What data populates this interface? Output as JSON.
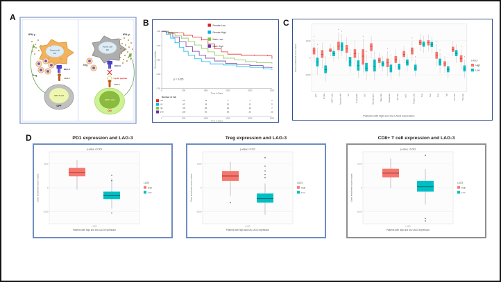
{
  "panel_labels": {
    "a": "A",
    "b": "B",
    "c": "C",
    "d": "D"
  },
  "palette": {
    "box_high": "#f8766d",
    "box_low": "#00bfc4",
    "km_female_low": "#e02020",
    "km_female_high": "#00b0f0",
    "km_male_low": "#7cc244",
    "km_male_high": "#7030a0",
    "panel_border_blue": "#31508e",
    "d_card_border_blue": "#6e8cc0",
    "d_card_border_gray": "#8f8f8f",
    "frame_border": "#151515"
  },
  "figure": {
    "panel_a": {
      "left": {
        "ifn": "IFN-γ",
        "tumor": "Tumor cell",
        "dc": "DC",
        "mhc": "MHC-II",
        "lag3": "LAG-3",
        "treg": "Treg",
        "t_cell": "CD4 T cell",
        "state": "OFF"
      },
      "right": {
        "ifn": "IFN-γ",
        "tumor": "Tumor cell",
        "dc": "DC",
        "mhc": "MHC-II",
        "cyclic_peptide": "Cyclic peptide",
        "lag3": "LAG-3",
        "treg": "Treg",
        "t_cell": "CD4 T cell",
        "state": "ON"
      }
    }
  },
  "chart_data": [
    {
      "panel": "B",
      "type": "line",
      "subtype": "kaplan_meier",
      "title": "",
      "p_value": "p = 0.025",
      "xlabel": "Time in Days",
      "ylabel": "Survival probability",
      "xlim": [
        0,
        2500
      ],
      "ylim": [
        0,
        1
      ],
      "xticks": [
        0,
        500,
        1000,
        1500,
        2000,
        2500
      ],
      "yticks": [
        1.0,
        0.75,
        0.5,
        0.25,
        0.0
      ],
      "legend_position": "top-right",
      "series": [
        {
          "name": "Female Low",
          "color": "#e02020",
          "points": [
            [
              0,
              1.0
            ],
            [
              150,
              0.98
            ],
            [
              350,
              0.97
            ],
            [
              500,
              0.93
            ],
            [
              700,
              0.9
            ],
            [
              900,
              0.85
            ],
            [
              1050,
              0.78
            ],
            [
              1200,
              0.7
            ],
            [
              1350,
              0.64
            ],
            [
              1500,
              0.6
            ],
            [
              1800,
              0.58
            ],
            [
              2100,
              0.58
            ],
            [
              2400,
              0.57
            ],
            [
              2500,
              0.52
            ]
          ]
        },
        {
          "name": "Female High",
          "color": "#00b0f0",
          "points": [
            [
              0,
              1.0
            ],
            [
              100,
              0.95
            ],
            [
              200,
              0.88
            ],
            [
              300,
              0.8
            ],
            [
              400,
              0.72
            ],
            [
              500,
              0.65
            ],
            [
              600,
              0.58
            ],
            [
              750,
              0.52
            ],
            [
              900,
              0.47
            ],
            [
              1100,
              0.43
            ],
            [
              1400,
              0.41
            ],
            [
              1700,
              0.38
            ],
            [
              2000,
              0.37
            ],
            [
              2300,
              0.34
            ],
            [
              2500,
              0.32
            ]
          ]
        },
        {
          "name": "Male Low",
          "color": "#7cc244",
          "points": [
            [
              0,
              1.0
            ],
            [
              150,
              0.96
            ],
            [
              300,
              0.92
            ],
            [
              450,
              0.88
            ],
            [
              600,
              0.82
            ],
            [
              750,
              0.76
            ],
            [
              900,
              0.7
            ],
            [
              1050,
              0.64
            ],
            [
              1200,
              0.58
            ],
            [
              1400,
              0.53
            ],
            [
              1650,
              0.5
            ],
            [
              1900,
              0.47
            ],
            [
              2150,
              0.45
            ],
            [
              2500,
              0.43
            ]
          ]
        },
        {
          "name": "Male High",
          "color": "#7030a0",
          "points": [
            [
              0,
              1.0
            ],
            [
              100,
              0.97
            ],
            [
              250,
              0.9
            ],
            [
              400,
              0.82
            ],
            [
              550,
              0.73
            ],
            [
              700,
              0.65
            ],
            [
              850,
              0.58
            ],
            [
              1000,
              0.53
            ],
            [
              1200,
              0.48
            ],
            [
              1450,
              0.44
            ],
            [
              1700,
              0.42
            ],
            [
              2000,
              0.4
            ],
            [
              2300,
              0.37
            ],
            [
              2500,
              0.36
            ]
          ]
        }
      ],
      "number_at_risk": {
        "title": "Number at risk",
        "time_points": [
          0,
          500,
          1000,
          1500,
          2000,
          2500
        ],
        "rows": [
          {
            "name": "Female Low",
            "color": "#e02020",
            "values": [
              29,
              21,
              12,
              4,
              1,
              1
            ]
          },
          {
            "name": "Female High",
            "color": "#00b0f0",
            "values": [
              61,
              42,
              26,
              15,
              11,
              5
            ]
          },
          {
            "name": "Male Low",
            "color": "#7cc244",
            "values": [
              91,
              58,
              35,
              16,
              10,
              7
            ]
          },
          {
            "name": "Male High",
            "color": "#7030a0",
            "values": [
              140,
              100,
              60,
              38,
              26,
              20
            ]
          }
        ]
      }
    },
    {
      "panel": "C",
      "type": "box",
      "grouping": "paired",
      "xlabel": "Patients with high and low LAG3 expression",
      "ylabel": "Gene enrichment score values",
      "ylim": [
        -2000,
        2000
      ],
      "yticks": [
        1000,
        0,
        -1000
      ],
      "legend": {
        "title": "LAG3",
        "items": [
          {
            "label": "High",
            "color": "#f8766d"
          },
          {
            "label": "Low",
            "color": "#00bfc4"
          }
        ]
      },
      "categories": [
        "aDC",
        "B cells",
        "CD8 T cells",
        "Cytotoxic cells",
        "DC",
        "Eosinophils",
        "iDC",
        "Macrophages",
        "Mast cells",
        "Neutrophils",
        "NK cells",
        "pDC",
        "T helper cells",
        "Tcm",
        "Tem",
        "TFH",
        "Tgd",
        "Th1 cells",
        "Th2 cells"
      ],
      "series": [
        {
          "name": "High",
          "color": "#f8766d",
          "boxes": [
            [
              200,
              400,
              600,
              -300,
              1100
            ],
            [
              0,
              200,
              450,
              -600,
              900
            ],
            [
              350,
              450,
              550,
              100,
              800
            ],
            [
              450,
              700,
              950,
              -100,
              1500
            ],
            [
              300,
              550,
              750,
              -200,
              1200
            ],
            [
              0,
              250,
              500,
              -500,
              1000
            ],
            [
              -400,
              100,
              500,
              -900,
              1100
            ],
            [
              400,
              650,
              850,
              0,
              1300
            ],
            [
              -300,
              -150,
              0,
              -600,
              300
            ],
            [
              -550,
              -300,
              -50,
              -1100,
              400
            ],
            [
              -300,
              -100,
              100,
              -700,
              500
            ],
            [
              50,
              200,
              400,
              -300,
              700
            ],
            [
              200,
              400,
              600,
              -200,
              1000
            ],
            [
              750,
              900,
              1050,
              400,
              1400
            ],
            [
              730,
              880,
              1030,
              380,
              1380
            ],
            [
              -50,
              150,
              350,
              -500,
              800
            ],
            [
              -500,
              -350,
              -200,
              -900,
              100
            ],
            [
              350,
              500,
              650,
              100,
              1000
            ],
            [
              -250,
              -50,
              150,
              -700,
              500
            ]
          ]
        },
        {
          "name": "Low",
          "color": "#00bfc4",
          "boxes": [
            [
              -500,
              -250,
              0,
              -1000,
              600
            ],
            [
              -900,
              -700,
              -450,
              -1400,
              100
            ],
            [
              100,
              250,
              400,
              -200,
              700
            ],
            [
              400,
              680,
              900,
              100,
              1400
            ],
            [
              -500,
              -250,
              50,
              -900,
              500
            ],
            [
              -750,
              -450,
              -150,
              -1200,
              300
            ],
            [
              -800,
              -600,
              -300,
              -1300,
              200
            ],
            [
              -800,
              -500,
              -100,
              -1300,
              400
            ],
            [
              -500,
              -350,
              -200,
              -800,
              100
            ],
            [
              -850,
              -650,
              -400,
              -1300,
              0
            ],
            [
              -700,
              -550,
              -350,
              -1100,
              -100
            ],
            [
              -450,
              -300,
              -100,
              -800,
              200
            ],
            [
              -750,
              -600,
              -400,
              -1100,
              -100
            ],
            [
              650,
              800,
              950,
              300,
              1300
            ],
            [
              630,
              780,
              930,
              280,
              1280
            ],
            [
              -450,
              -250,
              -50,
              -900,
              300
            ],
            [
              -850,
              -700,
              -500,
              -1200,
              -200
            ],
            [
              100,
              250,
              450,
              -300,
              800
            ],
            [
              -800,
              -650,
              -450,
              -1200,
              -100
            ]
          ]
        }
      ]
    },
    {
      "panel": "D1",
      "type": "box",
      "title": "PD1 expression and LAG-3",
      "p_value": "p-value <0.001",
      "xlabel": "Patients with high and low LAG3 expression",
      "ylabel": "Gene enrichment score values",
      "x_tick": "LAG3",
      "ylim": [
        -1500,
        1500
      ],
      "yticks": [
        1000,
        0,
        -1000
      ],
      "legend": {
        "title": "LAG3",
        "items": [
          {
            "label": "High",
            "color": "#f8766d"
          },
          {
            "label": "Low",
            "color": "#00bfc4"
          }
        ]
      },
      "series": [
        {
          "name": "High",
          "color": "#f8766d",
          "box": [
            480,
            640,
            830,
            -80,
            1150
          ],
          "outliers": []
        },
        {
          "name": "Low",
          "color": "#00bfc4",
          "box": [
            -470,
            -330,
            -160,
            -860,
            380
          ],
          "outliers": [
            520,
            300,
            -1050
          ]
        }
      ]
    },
    {
      "panel": "D2",
      "type": "box",
      "title": "Treg expression and LAG-3",
      "p_value": "p-value <0.001",
      "xlabel": "Patients with high and low LAG3 expression",
      "ylabel": "Gene enrichment score values",
      "x_tick": "LAG3",
      "ylim": [
        -1500,
        1500
      ],
      "yticks": [
        1000,
        0,
        -1000
      ],
      "legend": {
        "title": "LAG3",
        "items": [
          {
            "label": "High",
            "color": "#f8766d"
          },
          {
            "label": "Low",
            "color": "#00bfc4"
          }
        ]
      },
      "series": [
        {
          "name": "High",
          "color": "#f8766d",
          "box": [
            290,
            490,
            690,
            -340,
            1080
          ],
          "outliers": [
            -620
          ]
        },
        {
          "name": "Low",
          "color": "#00bfc4",
          "box": [
            -620,
            -450,
            -240,
            -1120,
            180
          ],
          "outliers": [
            1250,
            900,
            700,
            550,
            420
          ]
        }
      ]
    },
    {
      "panel": "D3",
      "type": "box",
      "title": "CD8+ T cell expression and LAG-3",
      "p_value": "p-value <0.001",
      "xlabel": "Patients with high and low LAG3 expression",
      "ylabel": "Gene enrichment score values",
      "x_tick": "LAG3",
      "ylim": [
        -1500,
        1500
      ],
      "yticks": [
        1000,
        0,
        -1000
      ],
      "legend": {
        "title": "LAG3",
        "items": [
          {
            "label": "High",
            "color": "#f8766d"
          },
          {
            "label": "Low",
            "color": "#00bfc4"
          }
        ]
      },
      "series": [
        {
          "name": "High",
          "color": "#f8766d",
          "box": [
            430,
            610,
            790,
            -20,
            1220
          ],
          "outliers": []
        },
        {
          "name": "Low",
          "color": "#00bfc4",
          "box": [
            -160,
            40,
            290,
            -700,
            780
          ],
          "outliers": [
            1350,
            -1280,
            -1380
          ]
        }
      ]
    }
  ]
}
